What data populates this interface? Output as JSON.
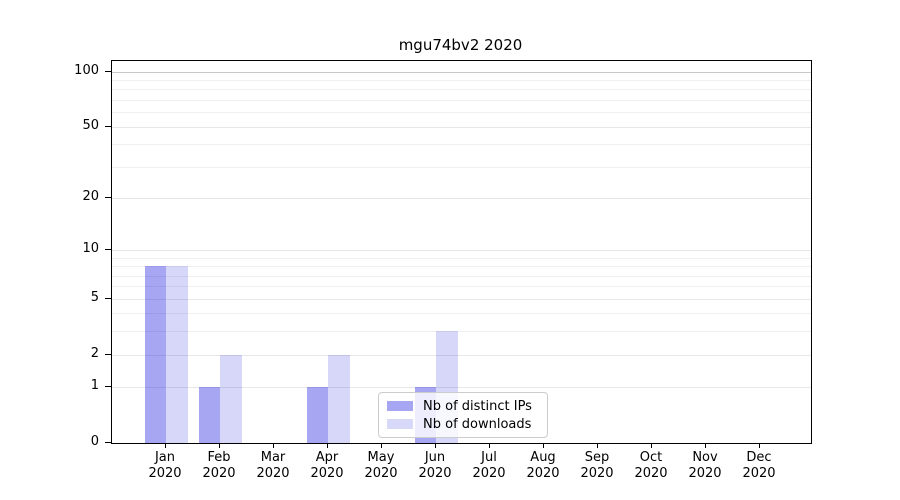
{
  "title": "mgu74bv2 2020",
  "chart_data": {
    "type": "bar",
    "title": "mgu74bv2 2020",
    "yscale": "log1p",
    "grid": "both",
    "ylim": [
      0,
      114
    ],
    "y_tick_values": [
      0,
      1,
      2,
      5,
      10,
      20,
      50,
      100
    ],
    "y_tick_labels": [
      "0",
      "1",
      "2",
      "5",
      "10",
      "20",
      "50",
      "100"
    ],
    "y_minor_gridlines": [
      3,
      4,
      6,
      7,
      8,
      9,
      30,
      40,
      60,
      70,
      80,
      90
    ],
    "x_months": [
      "Jan",
      "Feb",
      "Mar",
      "Apr",
      "May",
      "Jun",
      "Jul",
      "Aug",
      "Sep",
      "Oct",
      "Nov",
      "Dec"
    ],
    "x_year": "2020",
    "categories": [
      "Jan 2020",
      "Feb 2020",
      "Mar 2020",
      "Apr 2020",
      "May 2020",
      "Jun 2020",
      "Jul 2020",
      "Aug 2020",
      "Sep 2020",
      "Oct 2020",
      "Nov 2020",
      "Dec 2020"
    ],
    "series": [
      {
        "name": "Nb of distinct IPs",
        "base_color": "#2121E1",
        "alpha": 0.4,
        "swatch_color": "#a6a6f3",
        "values": [
          8,
          1,
          0,
          1,
          0,
          1,
          0,
          0,
          0,
          0,
          0,
          0
        ]
      },
      {
        "name": "Nb of downloads",
        "base_color": "#2121E1",
        "alpha": 0.18,
        "swatch_color": "#d8d8f9",
        "values": [
          8,
          2,
          0,
          2,
          0,
          3,
          0,
          0,
          0,
          0,
          0,
          0
        ]
      }
    ],
    "colors": {
      "grid_minor": "#efefef",
      "grid_major": "#e7e7e7",
      "grid_top_line": "#c9c9c9",
      "spine": "#000000",
      "legend_border": "#cccccc"
    },
    "legend": {
      "entries": [
        "Nb of distinct IPs",
        "Nb of downloads"
      ],
      "location": "lower center"
    }
  }
}
